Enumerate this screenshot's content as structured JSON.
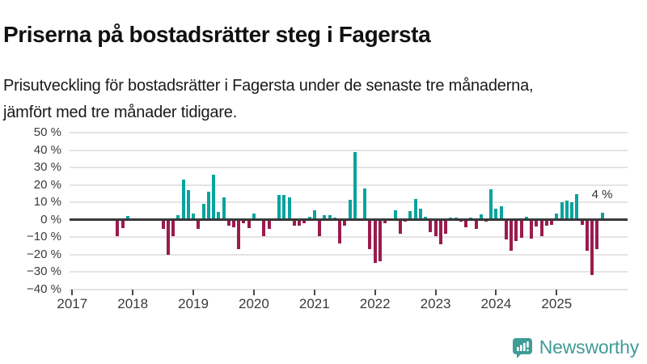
{
  "header": {
    "title": "Priserna på bostadsrätter steg i Fagersta",
    "subtitle": "Prisutveckling för bostadsrätter i Fagersta under de senaste tre månaderna, jämfört med tre månader tidigare."
  },
  "footer": {
    "brand": "Newsworthy"
  },
  "chart_data": {
    "type": "bar",
    "title": "Priserna på bostadsrätter steg i Fagersta",
    "unit": "%",
    "ylim": [
      -40,
      50
    ],
    "grid": true,
    "legend": "none",
    "ytick_values": [
      50,
      40,
      30,
      20,
      10,
      0,
      -10,
      -20,
      -30,
      -40
    ],
    "ytick_labels": [
      "50 %",
      "40 %",
      "30 %",
      "20 %",
      "10 %",
      "0 %",
      "−10 %",
      "−20 %",
      "−30 %",
      "−40 %"
    ],
    "xtick_labels": [
      "2017",
      "2018",
      "2019",
      "2020",
      "2021",
      "2022",
      "2023",
      "2024",
      "2025"
    ],
    "x_start": "2017-01",
    "annotation": {
      "text": "4 %",
      "month": "2025-10",
      "value": 4
    },
    "colors": {
      "positive": "#0aa39e",
      "negative": "#9b1b4d",
      "gridline": "#e4e4e4",
      "axis": "#383838",
      "logo": "#3f9c96"
    },
    "series": [
      {
        "m": "2017-10",
        "v": -9.5
      },
      {
        "m": "2017-11",
        "v": -5
      },
      {
        "m": "2017-12",
        "v": 2
      },
      {
        "m": "2018-07",
        "v": -5.5
      },
      {
        "m": "2018-08",
        "v": -20
      },
      {
        "m": "2018-09",
        "v": -9.5
      },
      {
        "m": "2018-10",
        "v": 2.5
      },
      {
        "m": "2018-11",
        "v": 23
      },
      {
        "m": "2018-12",
        "v": 17
      },
      {
        "m": "2019-01",
        "v": 3.5
      },
      {
        "m": "2019-02",
        "v": -5.5
      },
      {
        "m": "2019-03",
        "v": 9
      },
      {
        "m": "2019-04",
        "v": 16
      },
      {
        "m": "2019-05",
        "v": 26
      },
      {
        "m": "2019-06",
        "v": 4.5
      },
      {
        "m": "2019-07",
        "v": 13
      },
      {
        "m": "2019-08",
        "v": -3.5
      },
      {
        "m": "2019-09",
        "v": -4.5
      },
      {
        "m": "2019-10",
        "v": -17
      },
      {
        "m": "2019-11",
        "v": -2
      },
      {
        "m": "2019-12",
        "v": -5
      },
      {
        "m": "2020-01",
        "v": 3.5
      },
      {
        "m": "2020-03",
        "v": -9.5
      },
      {
        "m": "2020-04",
        "v": -5.5
      },
      {
        "m": "2020-06",
        "v": 14
      },
      {
        "m": "2020-07",
        "v": 14
      },
      {
        "m": "2020-08",
        "v": 13
      },
      {
        "m": "2020-09",
        "v": -3.5
      },
      {
        "m": "2020-10",
        "v": -3.5
      },
      {
        "m": "2020-11",
        "v": -2
      },
      {
        "m": "2020-12",
        "v": 1.5
      },
      {
        "m": "2021-01",
        "v": 5.5
      },
      {
        "m": "2021-02",
        "v": -9.5
      },
      {
        "m": "2021-03",
        "v": 2.5
      },
      {
        "m": "2021-04",
        "v": 2.5
      },
      {
        "m": "2021-05",
        "v": 1
      },
      {
        "m": "2021-06",
        "v": -13.5
      },
      {
        "m": "2021-07",
        "v": -3.5
      },
      {
        "m": "2021-08",
        "v": 11.5
      },
      {
        "m": "2021-09",
        "v": 39
      },
      {
        "m": "2021-11",
        "v": 18
      },
      {
        "m": "2021-12",
        "v": -17
      },
      {
        "m": "2022-01",
        "v": -25
      },
      {
        "m": "2022-02",
        "v": -24
      },
      {
        "m": "2022-03",
        "v": -2
      },
      {
        "m": "2022-05",
        "v": 5.5
      },
      {
        "m": "2022-06",
        "v": -8
      },
      {
        "m": "2022-07",
        "v": -1
      },
      {
        "m": "2022-08",
        "v": 5
      },
      {
        "m": "2022-09",
        "v": 12
      },
      {
        "m": "2022-10",
        "v": 6.5
      },
      {
        "m": "2022-11",
        "v": 1.5
      },
      {
        "m": "2022-12",
        "v": -7
      },
      {
        "m": "2023-01",
        "v": -9.5
      },
      {
        "m": "2023-02",
        "v": -14
      },
      {
        "m": "2023-03",
        "v": -8
      },
      {
        "m": "2023-04",
        "v": 1
      },
      {
        "m": "2023-05",
        "v": 1
      },
      {
        "m": "2023-06",
        "v": -1
      },
      {
        "m": "2023-07",
        "v": -4.5
      },
      {
        "m": "2023-08",
        "v": 1
      },
      {
        "m": "2023-09",
        "v": -5.5
      },
      {
        "m": "2023-10",
        "v": 3
      },
      {
        "m": "2023-11",
        "v": -1
      },
      {
        "m": "2023-12",
        "v": 17.5
      },
      {
        "m": "2024-01",
        "v": 6.5
      },
      {
        "m": "2024-02",
        "v": 7.5
      },
      {
        "m": "2024-03",
        "v": -11.5
      },
      {
        "m": "2024-04",
        "v": -18
      },
      {
        "m": "2024-05",
        "v": -12.5
      },
      {
        "m": "2024-06",
        "v": -10.5
      },
      {
        "m": "2024-07",
        "v": 1.5
      },
      {
        "m": "2024-08",
        "v": -11
      },
      {
        "m": "2024-09",
        "v": -4
      },
      {
        "m": "2024-10",
        "v": -9.5
      },
      {
        "m": "2024-11",
        "v": -3.5
      },
      {
        "m": "2024-12",
        "v": -3
      },
      {
        "m": "2025-01",
        "v": 3.5
      },
      {
        "m": "2025-02",
        "v": 10
      },
      {
        "m": "2025-03",
        "v": 11
      },
      {
        "m": "2025-04",
        "v": 10
      },
      {
        "m": "2025-05",
        "v": 14.5
      },
      {
        "m": "2025-06",
        "v": -3
      },
      {
        "m": "2025-07",
        "v": -18
      },
      {
        "m": "2025-08",
        "v": -32
      },
      {
        "m": "2025-09",
        "v": -17
      },
      {
        "m": "2025-10",
        "v": 4
      }
    ]
  }
}
